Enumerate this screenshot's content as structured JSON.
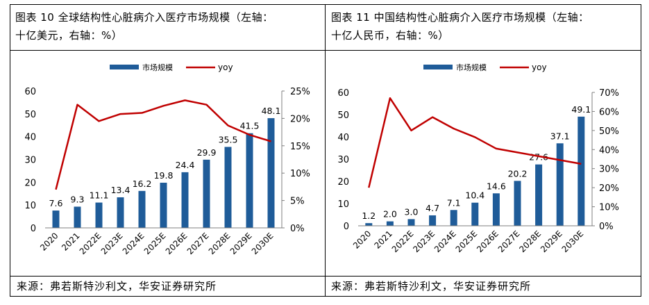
{
  "chart_data": [
    {
      "type": "bar+line",
      "title_line1": "图表 10  全球结构性心脏病介入医疗市场规模（左轴：",
      "title_line2": "十亿美元，右轴：%）",
      "categories": [
        "2020",
        "2021",
        "2022E",
        "2023E",
        "2024E",
        "2025E",
        "2026E",
        "2027E",
        "2028E",
        "2029E",
        "2030E"
      ],
      "series": [
        {
          "name": "市场规模",
          "kind": "bar",
          "axis": "left",
          "color": "#1f5c99",
          "values": [
            7.6,
            9.3,
            11.1,
            13.4,
            16.2,
            19.8,
            24.4,
            29.9,
            35.5,
            41.5,
            48.1
          ],
          "labels": [
            "7.6",
            "9.3",
            "11.1",
            "13.4",
            "16.2",
            "19.8",
            "24.4",
            "29.9",
            "35.5",
            "41.5",
            "48.1"
          ]
        },
        {
          "name": "yoy",
          "kind": "line",
          "axis": "right",
          "color": "#c00000",
          "values": [
            7,
            22.5,
            19.5,
            20.8,
            21,
            22.3,
            23.3,
            22.5,
            18.7,
            17,
            15.8
          ]
        }
      ],
      "left_axis": {
        "min": 0,
        "max": 60,
        "ticks": [
          "0",
          "10",
          "20",
          "30",
          "40",
          "50",
          "60"
        ]
      },
      "right_axis": {
        "min": 0,
        "max": 25,
        "ticks": [
          "0%",
          "5%",
          "10%",
          "15%",
          "20%",
          "25%"
        ]
      },
      "legend": [
        "市场规模",
        "yoy"
      ],
      "source": "来源：弗若斯特沙利文，华安证券研究所"
    },
    {
      "type": "bar+line",
      "title_line1": "图表 11  中国结构性心脏病介入医疗市场规模（左轴：",
      "title_line2": "十亿人民币，右轴：%）",
      "categories": [
        "2020",
        "2021",
        "2022E",
        "2023E",
        "2024E",
        "2025E",
        "2026E",
        "2027E",
        "2028E",
        "2029E",
        "2030E"
      ],
      "series": [
        {
          "name": "市场规模",
          "kind": "bar",
          "axis": "left",
          "color": "#1f5c99",
          "values": [
            1.2,
            2.0,
            3.0,
            4.7,
            7.1,
            10.4,
            14.6,
            20.2,
            27.6,
            37.1,
            49.1
          ],
          "labels": [
            "1.2",
            "2.0",
            "3.0",
            "4.7",
            "7.1",
            "10.4",
            "14.6",
            "20.2",
            "27.6",
            "37.1",
            "49.1"
          ]
        },
        {
          "name": "yoy",
          "kind": "line",
          "axis": "right",
          "color": "#c00000",
          "values": [
            20,
            67,
            50,
            57,
            51,
            46.5,
            40.5,
            38.5,
            36.5,
            34.5,
            32.5
          ]
        }
      ],
      "left_axis": {
        "min": 0,
        "max": 60,
        "ticks": [
          "0",
          "10",
          "20",
          "30",
          "40",
          "50",
          "60"
        ]
      },
      "right_axis": {
        "min": 0,
        "max": 70,
        "ticks": [
          "0%",
          "10%",
          "20%",
          "30%",
          "40%",
          "50%",
          "60%",
          "70%"
        ]
      },
      "legend": [
        "市场规模",
        "yoy"
      ],
      "source": "来源：弗若斯特沙利文，华安证券研究所"
    }
  ]
}
